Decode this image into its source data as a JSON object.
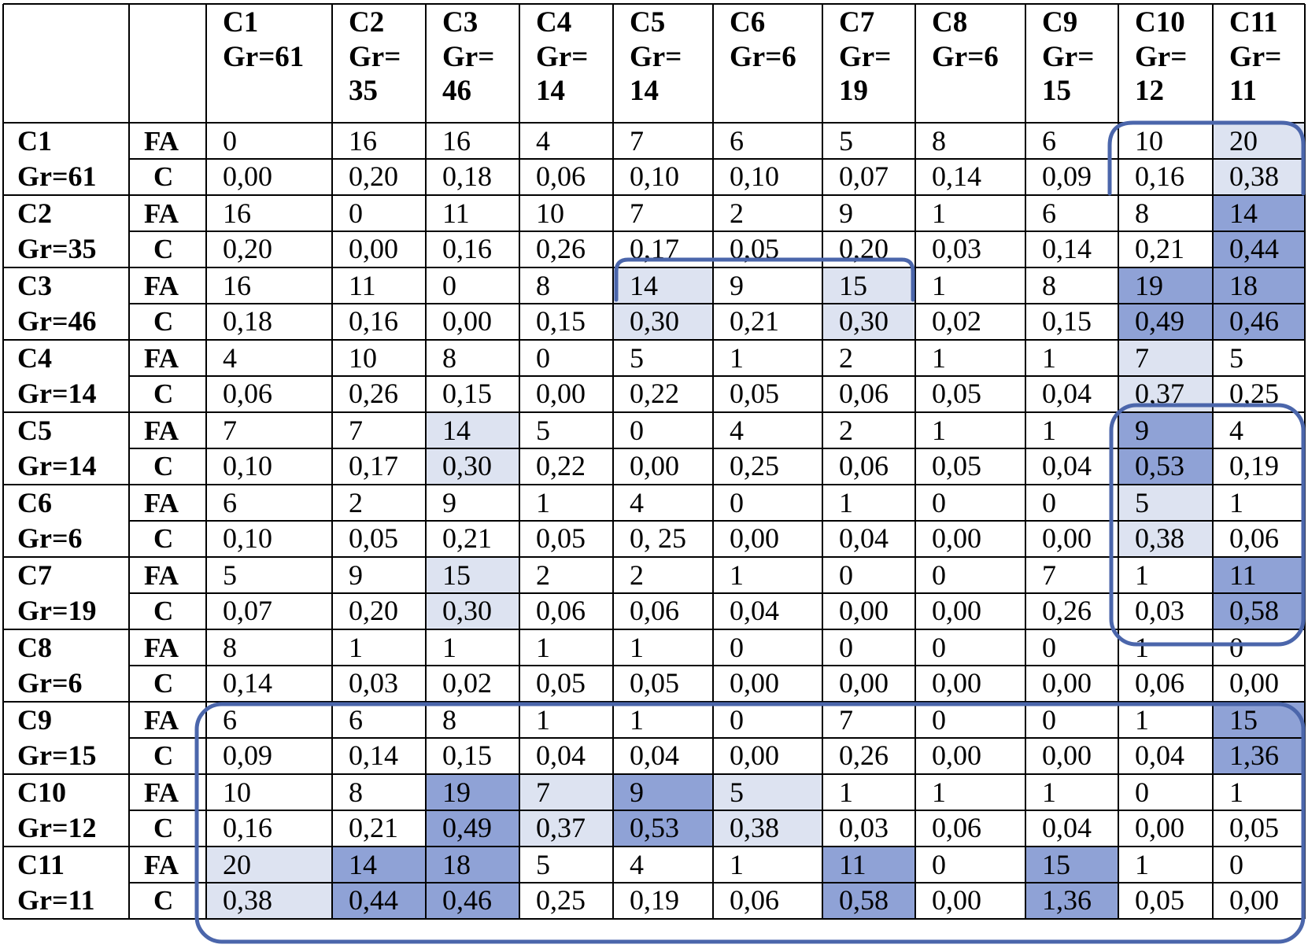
{
  "colors": {
    "light": "#dde3f1",
    "dark": "#8fa2d6",
    "outline": "#4b66ab",
    "grid": "#000000"
  },
  "columns": [
    {
      "name": "C1",
      "gr": [
        "Gr=61"
      ]
    },
    {
      "name": "C2",
      "gr": [
        "Gr=",
        "35"
      ]
    },
    {
      "name": "C3",
      "gr": [
        "Gr=",
        "46"
      ]
    },
    {
      "name": "C4",
      "gr": [
        "Gr=",
        "14"
      ]
    },
    {
      "name": "C5",
      "gr": [
        "Gr=",
        "14"
      ]
    },
    {
      "name": "C6",
      "gr": [
        "Gr=6"
      ]
    },
    {
      "name": "C7",
      "gr": [
        "Gr=",
        "19"
      ]
    },
    {
      "name": "C8",
      "gr": [
        "Gr=6"
      ]
    },
    {
      "name": "C9",
      "gr": [
        "Gr=",
        "15"
      ]
    },
    {
      "name": "C10",
      "gr": [
        "Gr=",
        "12"
      ]
    },
    {
      "name": "C11",
      "gr": [
        "Gr=",
        "11"
      ]
    }
  ],
  "rows": [
    {
      "name": "C1",
      "gr": "Gr=61",
      "fa": [
        "0",
        "16",
        "16",
        "4",
        "7",
        "6",
        "5",
        "8",
        "6",
        "10",
        "20"
      ],
      "c": [
        "0,00",
        "0,20",
        "0,18",
        "0,06",
        "0,10",
        "0,10",
        "0,07",
        "0,14",
        "0,09",
        "0,16",
        "0,38"
      ],
      "shade": [
        "",
        "",
        "",
        "",
        "",
        "",
        "",
        "",
        "",
        "",
        "light"
      ]
    },
    {
      "name": "C2",
      "gr": "Gr=35",
      "fa": [
        "16",
        "0",
        "11",
        "10",
        "7",
        "2",
        "9",
        "1",
        "6",
        "8",
        "14"
      ],
      "c": [
        "0,20",
        "0,00",
        "0,16",
        "0,26",
        "0,17",
        "0,05",
        "0,20",
        "0,03",
        "0,14",
        "0,21",
        "0,44"
      ],
      "shade": [
        "",
        "",
        "",
        "",
        "",
        "",
        "",
        "",
        "",
        "",
        "dark"
      ]
    },
    {
      "name": "C3",
      "gr": "Gr=46",
      "fa": [
        "16",
        "11",
        "0",
        "8",
        "14",
        "9",
        "15",
        "1",
        "8",
        "19",
        "18"
      ],
      "c": [
        "0,18",
        "0,16",
        "0,00",
        "0,15",
        "0,30",
        "0,21",
        "0,30",
        "0,02",
        "0,15",
        "0,49",
        "0,46"
      ],
      "shade": [
        "",
        "",
        "",
        "",
        "light",
        "",
        "light",
        "",
        "",
        "dark",
        "dark"
      ]
    },
    {
      "name": "C4",
      "gr": "Gr=14",
      "fa": [
        "4",
        "10",
        "8",
        "0",
        "5",
        "1",
        "2",
        "1",
        "1",
        "7",
        "5"
      ],
      "c": [
        "0,06",
        "0,26",
        "0,15",
        "0,00",
        "0,22",
        "0,05",
        "0,06",
        "0,05",
        "0,04",
        "0,37",
        "0,25"
      ],
      "shade": [
        "",
        "",
        "",
        "",
        "",
        "",
        "",
        "",
        "",
        "light",
        ""
      ]
    },
    {
      "name": "C5",
      "gr": "Gr=14",
      "fa": [
        "7",
        "7",
        "14",
        "5",
        "0",
        "4",
        "2",
        "1",
        "1",
        "9",
        "4"
      ],
      "c": [
        "0,10",
        "0,17",
        "0,30",
        "0,22",
        "0,00",
        "0,25",
        "0,06",
        "0,05",
        "0,04",
        "0,53",
        "0,19"
      ],
      "shade": [
        "",
        "",
        "light",
        "",
        "",
        "",
        "",
        "",
        "",
        "dark",
        ""
      ]
    },
    {
      "name": "C6",
      "gr": "Gr=6",
      "fa": [
        "6",
        "2",
        "9",
        "1",
        "4",
        "0",
        "1",
        "0",
        "0",
        "5",
        "1"
      ],
      "c": [
        "0,10",
        "0,05",
        "0,21",
        "0,05",
        "0, 25",
        "0,00",
        "0,04",
        "0,00",
        "0,00",
        "0,38",
        "0,06"
      ],
      "shade": [
        "",
        "",
        "",
        "",
        "",
        "",
        "",
        "",
        "",
        "light",
        ""
      ]
    },
    {
      "name": "C7",
      "gr": "Gr=19",
      "fa": [
        "5",
        "9",
        "15",
        "2",
        "2",
        "1",
        "0",
        "0",
        "7",
        "1",
        "11"
      ],
      "c": [
        "0,07",
        "0,20",
        "0,30",
        "0,06",
        "0,06",
        "0,04",
        "0,00",
        "0,00",
        "0,26",
        "0,03",
        "0,58"
      ],
      "shade": [
        "",
        "",
        "light",
        "",
        "",
        "",
        "",
        "",
        "",
        "",
        "dark"
      ]
    },
    {
      "name": "C8",
      "gr": "Gr=6",
      "fa": [
        "8",
        "1",
        "1",
        "1",
        "1",
        "0",
        "0",
        "0",
        "0",
        "1",
        "0"
      ],
      "c": [
        "0,14",
        "0,03",
        "0,02",
        "0,05",
        "0,05",
        "0,00",
        "0,00",
        "0,00",
        "0,00",
        "0,06",
        "0,00"
      ],
      "shade": [
        "",
        "",
        "",
        "",
        "",
        "",
        "",
        "",
        "",
        "",
        ""
      ]
    },
    {
      "name": "C9",
      "gr": "Gr=15",
      "fa": [
        "6",
        "6",
        "8",
        "1",
        "1",
        "0",
        "7",
        "0",
        "0",
        "1",
        "15"
      ],
      "c": [
        "0,09",
        "0,14",
        "0,15",
        "0,04",
        "0,04",
        "0,00",
        "0,26",
        "0,00",
        "0,00",
        "0,04",
        "1,36"
      ],
      "shade": [
        "",
        "",
        "",
        "",
        "",
        "",
        "",
        "",
        "",
        "",
        "dark"
      ]
    },
    {
      "name": "C10",
      "gr": "Gr=12",
      "fa": [
        "10",
        "8",
        "19",
        "7",
        "9",
        "5",
        "1",
        "1",
        "1",
        "0",
        "1"
      ],
      "c": [
        "0,16",
        "0,21",
        "0,49",
        "0,37",
        "0,53",
        "0,38",
        "0,03",
        "0,06",
        "0,04",
        "0,00",
        "0,05"
      ],
      "shade": [
        "",
        "",
        "dark",
        "light",
        "dark",
        "light",
        "",
        "",
        "",
        "",
        ""
      ]
    },
    {
      "name": "C11",
      "gr": "Gr=11",
      "fa": [
        "20",
        "14",
        "18",
        "5",
        "4",
        "1",
        "11",
        "0",
        "15",
        "1",
        "0"
      ],
      "c": [
        "0,38",
        "0,44",
        "0,46",
        "0,25",
        "0,19",
        "0,06",
        "0,58",
        "0,00",
        "1,36",
        "0,05",
        "0,00"
      ],
      "shade": [
        "light",
        "dark",
        "dark",
        "",
        "",
        "",
        "dark",
        "",
        "dark",
        "",
        ""
      ]
    }
  ],
  "type_labels": {
    "fa": "FA",
    "c": "C"
  }
}
